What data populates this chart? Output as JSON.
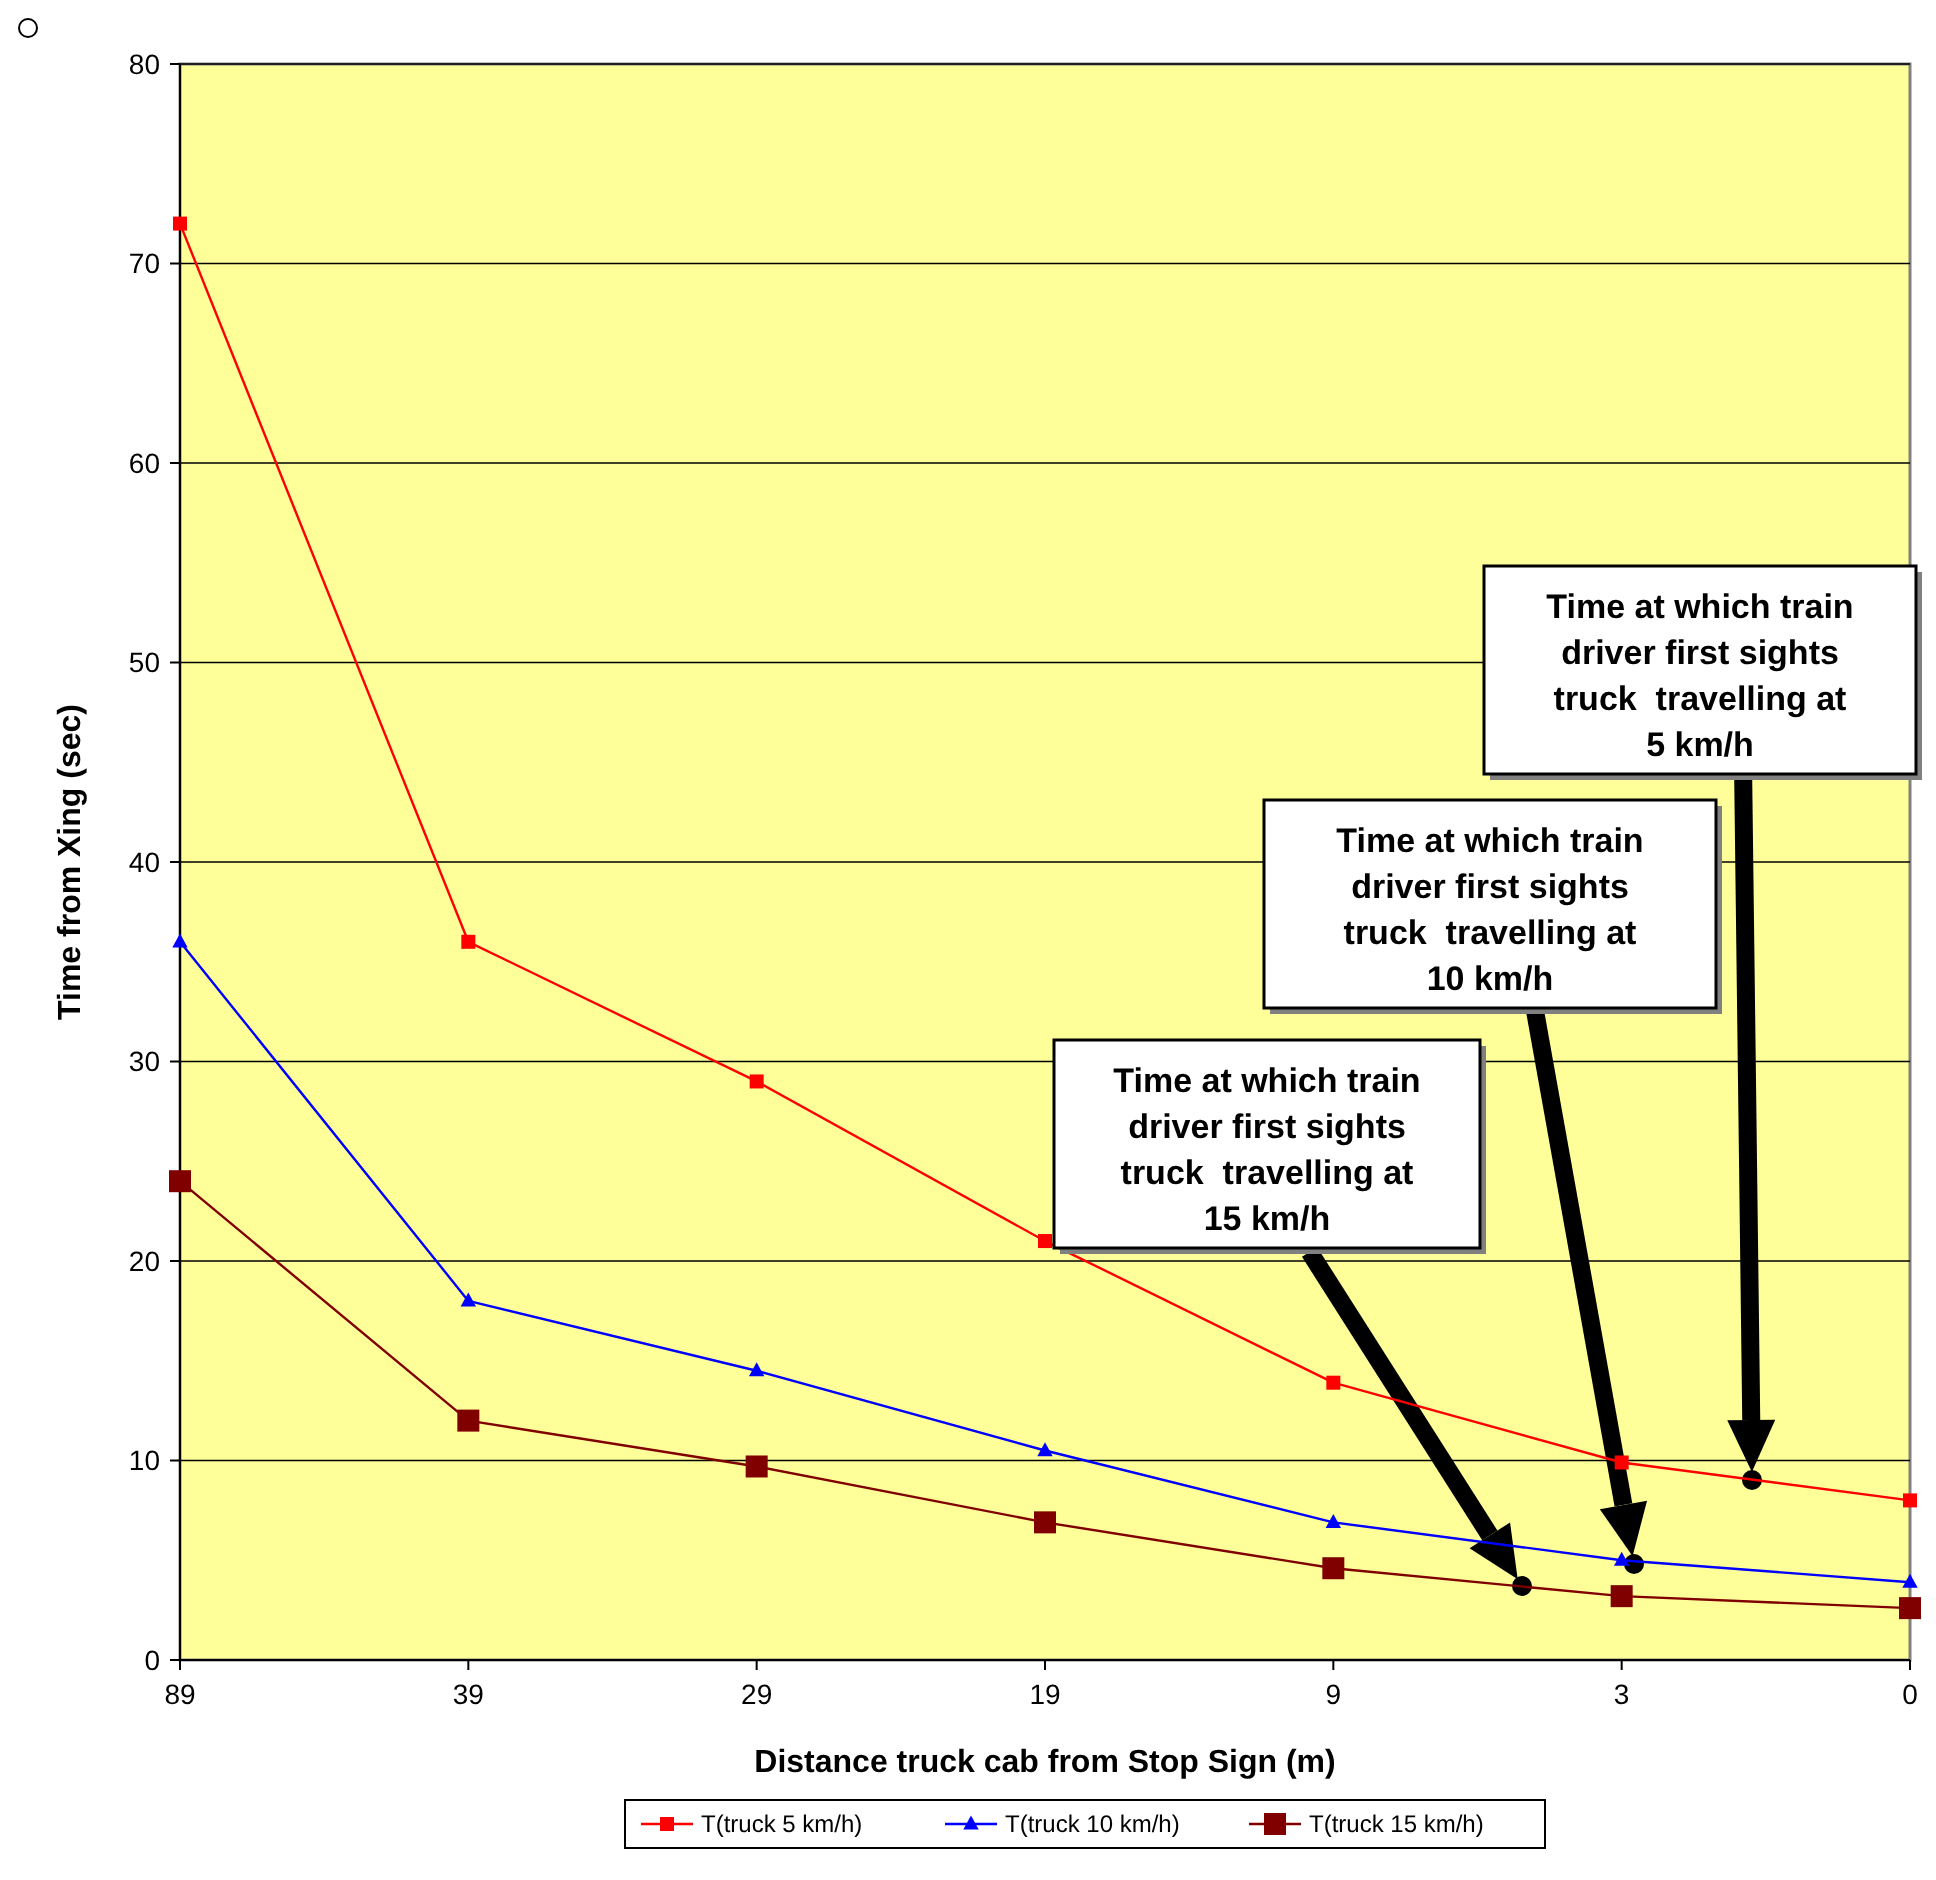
{
  "chart_data": {
    "type": "line",
    "xlabel": "Distance truck cab from Stop Sign (m)",
    "ylabel": "Time from Xing (sec)",
    "categories": [
      "89",
      "39",
      "29",
      "19",
      "9",
      "3",
      "0"
    ],
    "series": [
      {
        "name": "T(truck 5 km/h)",
        "color": "#ff0000",
        "marker": "square",
        "values": [
          72,
          36,
          29,
          21,
          13.9,
          9.9,
          8.0
        ]
      },
      {
        "name": "T(truck 10 km/h)",
        "color": "#0000ff",
        "marker": "triangle",
        "values": [
          36,
          18,
          14.5,
          10.5,
          6.9,
          5.0,
          3.9
        ]
      },
      {
        "name": "T(truck 15 km/h)",
        "color": "#800000",
        "marker": "square",
        "values": [
          24,
          12,
          9.7,
          6.9,
          4.6,
          3.2,
          2.6
        ]
      }
    ],
    "ylim": [
      0,
      80
    ],
    "yticks": [
      0,
      10,
      20,
      30,
      40,
      50,
      60,
      70,
      80
    ],
    "grid": "y",
    "legend": "bottom",
    "annotations": [
      "Time at which train\ndriver first sights\ntruck  travelling at\n5 km/h",
      "Time at which train\ndriver first sights\ntruck  travelling at\n10 km/h",
      "Time at which train\ndriver first sights\ntruck  travelling at\n15 km/h"
    ]
  }
}
